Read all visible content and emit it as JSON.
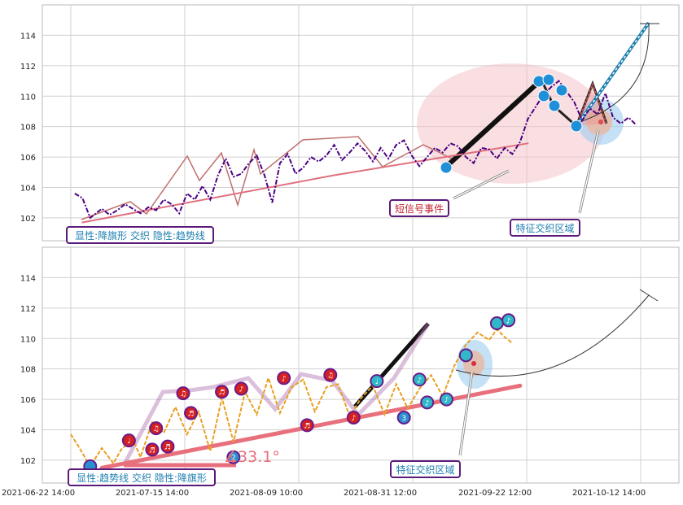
{
  "chart_data": [
    {
      "type": "line",
      "panel": "top",
      "title": "",
      "xlabel": "",
      "ylabel": "",
      "ylim": [
        100.5,
        116
      ],
      "yticks": [
        102,
        104,
        106,
        108,
        110,
        112,
        114
      ],
      "grid": true,
      "series": [
        {
          "role": "price",
          "color": "#4b0082",
          "x": [
            1,
            3,
            5,
            8,
            10,
            12,
            14,
            16,
            18,
            20,
            22,
            24,
            26,
            28,
            30,
            32,
            34,
            36,
            38,
            40,
            42,
            44,
            46,
            48,
            50,
            52,
            54,
            56,
            58,
            60,
            62,
            64,
            66,
            68,
            70,
            72,
            74,
            76,
            78,
            80,
            82,
            84,
            86,
            88,
            90,
            92,
            94,
            96,
            98,
            100,
            102,
            104,
            106,
            108,
            110,
            112,
            114,
            116,
            118,
            120,
            122,
            124,
            126,
            128,
            130,
            132,
            134,
            136,
            138,
            140,
            142,
            144,
            146
          ],
          "y": [
            103.6,
            103.3,
            102.0,
            102.6,
            102.2,
            102.5,
            102.9,
            102.6,
            102.3,
            102.7,
            102.5,
            103.2,
            102.9,
            102.3,
            103.6,
            103.2,
            104.1,
            103.2,
            104.8,
            105.9,
            104.7,
            104.9,
            105.6,
            106.1,
            104.8,
            103.0,
            105.6,
            106.2,
            104.9,
            105.3,
            106.0,
            105.7,
            106.1,
            106.8,
            105.8,
            106.3,
            106.9,
            106.4,
            105.7,
            106.6,
            105.9,
            106.8,
            107.1,
            106.1,
            105.4,
            106.0,
            106.6,
            106.3,
            106.9,
            106.7,
            106.0,
            105.6,
            106.6,
            106.5,
            105.9,
            106.6,
            106.2,
            107.0,
            108.5,
            109.3,
            110.1,
            110.6,
            111.0,
            110.3,
            109.6,
            108.4,
            109.2,
            108.8,
            110.2,
            108.6,
            108.2,
            108.6,
            108.1
          ]
        },
        {
          "role": "long-trend-line",
          "color": "#e0717f",
          "x": [
            3,
            68,
            118
          ],
          "y": [
            101.7,
            104.8,
            106.9
          ]
        }
      ],
      "annotations": [
        {
          "label": "短信号事件",
          "color": "#c02030"
        },
        {
          "label": "特征交织区域",
          "color": "#1f7fb0"
        },
        {
          "label": "显性:降旗形 交织 隐性:趋势线",
          "color": "#1f7fb0"
        }
      ]
    },
    {
      "type": "line",
      "panel": "bottom",
      "title": "",
      "xlabel": "",
      "ylabel": "",
      "ylim": [
        100.5,
        116
      ],
      "yticks": [
        102,
        104,
        106,
        108,
        110,
        112,
        114
      ],
      "xticks": [
        "2021-06-22 14:00",
        "2021-07-15 14:00",
        "2021-08-09 10:00",
        "2021-08-31 12:00",
        "2021-09-22 12:00",
        "2021-10-12 14:00"
      ],
      "grid": true,
      "series": [
        {
          "role": "price",
          "color": "#e8a020",
          "x": [
            0,
            2,
            5,
            8,
            11,
            13,
            16,
            18,
            21,
            24,
            27,
            30,
            33,
            36,
            39,
            42,
            45,
            48,
            51,
            54,
            57,
            60,
            63,
            66,
            69,
            72,
            75,
            78,
            81,
            84,
            87,
            90,
            93,
            96,
            99,
            102,
            105,
            108,
            110,
            112,
            114
          ],
          "y": [
            103.7,
            102.9,
            101.6,
            102.8,
            101.8,
            102.7,
            103.4,
            102.2,
            104.5,
            103.8,
            105.5,
            103.7,
            105.2,
            102.6,
            106.1,
            103.2,
            106.5,
            105.0,
            107.4,
            105.1,
            106.8,
            107.3,
            105.2,
            106.8,
            107.0,
            104.9,
            106.1,
            106.9,
            105.0,
            107.0,
            105.4,
            106.7,
            107.6,
            106.2,
            108.2,
            109.6,
            110.4,
            109.9,
            110.6,
            110.1,
            109.7
          ]
        },
        {
          "role": "trend-line",
          "color": "#e8707c",
          "x": [
            8,
            116
          ],
          "y": [
            101.5,
            106.9
          ]
        }
      ],
      "markers": {
        "color": "#d42020",
        "x": [
          5,
          15,
          21,
          22,
          25,
          29,
          31,
          39,
          42,
          44,
          55,
          61,
          67,
          73,
          79,
          86,
          90,
          92,
          97,
          102,
          110,
          113
        ],
        "y": [
          101.6,
          103.3,
          102.7,
          104.1,
          102.9,
          106.4,
          105.1,
          106.5,
          102.2,
          106.7,
          107.4,
          104.3,
          107.6,
          104.8,
          107.2,
          104.8,
          107.3,
          105.8,
          106.0,
          108.9,
          111.0,
          111.2
        ],
        "labels": [
          "",
          "♩",
          "♬",
          "♫",
          "♬",
          "♫",
          "♬",
          "♬",
          "2",
          "♪",
          "♪",
          "♬",
          "♫",
          "♪",
          "♩",
          "3",
          "♪",
          "♪",
          "♪",
          "",
          "",
          "♪"
        ]
      },
      "angle_label": "∡33.1°",
      "annotations": [
        {
          "label": "特征交织区域",
          "color": "#1f7fb0"
        },
        {
          "label": "显性:趋势线 交织 隐性:降旗形",
          "color": "#1f7fb0"
        }
      ]
    }
  ]
}
